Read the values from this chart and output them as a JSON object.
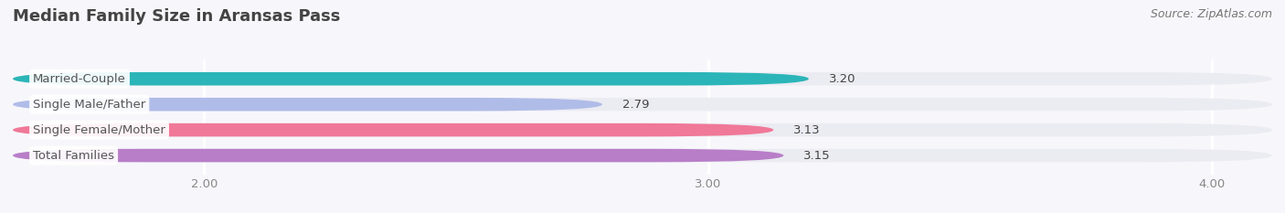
{
  "title": "Median Family Size in Aransas Pass",
  "source": "Source: ZipAtlas.com",
  "categories": [
    "Married-Couple",
    "Single Male/Father",
    "Single Female/Mother",
    "Total Families"
  ],
  "values": [
    3.2,
    2.79,
    3.13,
    3.15
  ],
  "bar_colors": [
    "#2bb5b8",
    "#b0bce8",
    "#f07898",
    "#b87ec8"
  ],
  "bar_bg_color": "#ebebf2",
  "value_colors": [
    "#ffffff",
    "#555555",
    "#555555",
    "#555555"
  ],
  "xlim_start": 1.62,
  "xlim_end": 4.12,
  "xticks": [
    2.0,
    3.0,
    4.0
  ],
  "xtick_labels": [
    "2.00",
    "3.00",
    "4.00"
  ],
  "label_fontsize": 9.5,
  "value_fontsize": 9.5,
  "title_fontsize": 13,
  "source_fontsize": 9,
  "bar_height": 0.52,
  "background_color": "#f7f7fb",
  "grid_color": "#ffffff",
  "tick_color": "#888888",
  "label_box_color": "#ffffff",
  "label_text_color": "#555555"
}
